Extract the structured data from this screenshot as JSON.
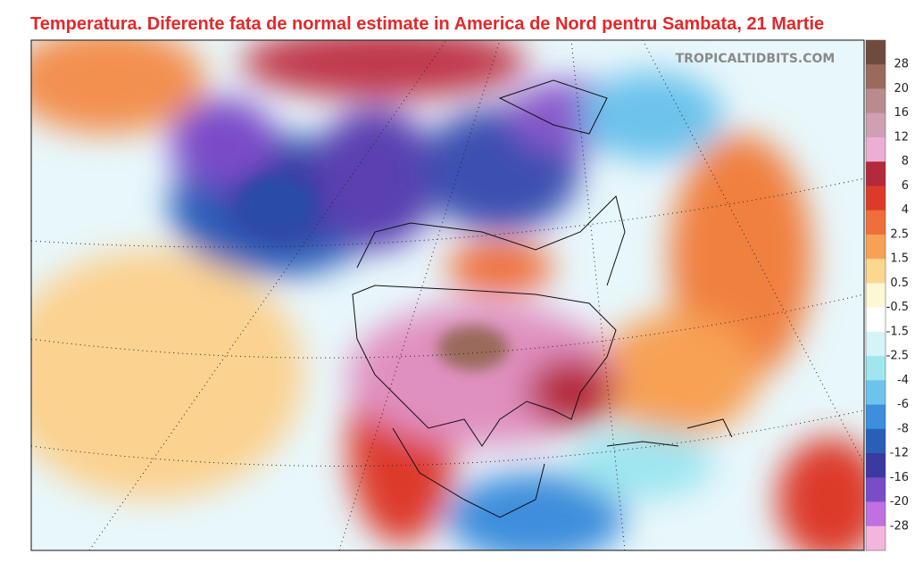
{
  "header": {
    "title": "Temperatura. Diferente fata de normal estimate in America de Nord pentru Sambata, 21 Martie"
  },
  "map": {
    "watermark": "TROPICALTIDBITS.COM"
  },
  "legend": {
    "labels": [
      "28",
      "20",
      "16",
      "12",
      "8",
      "6",
      "4",
      "2.5",
      "1.5",
      "0.5",
      "-0.5",
      "-1.5",
      "-2.5",
      "-4",
      "-6",
      "-8",
      "-12",
      "-16",
      "-20",
      "-28"
    ],
    "colors": [
      "#6e4b3c",
      "#9a6a5c",
      "#b98b8c",
      "#cf9fb4",
      "#ecaed2",
      "#b52a3a",
      "#dd3b2a",
      "#ef6e3a",
      "#f7a155",
      "#fbd790",
      "#fdf7d6",
      "#ffffff",
      "#d4f4f8",
      "#9fe6f0",
      "#6cc3ec",
      "#3d8edc",
      "#2a5fb8",
      "#3a3aa0",
      "#7a4cc8",
      "#c070e0",
      "#f2b6dc"
    ]
  }
}
